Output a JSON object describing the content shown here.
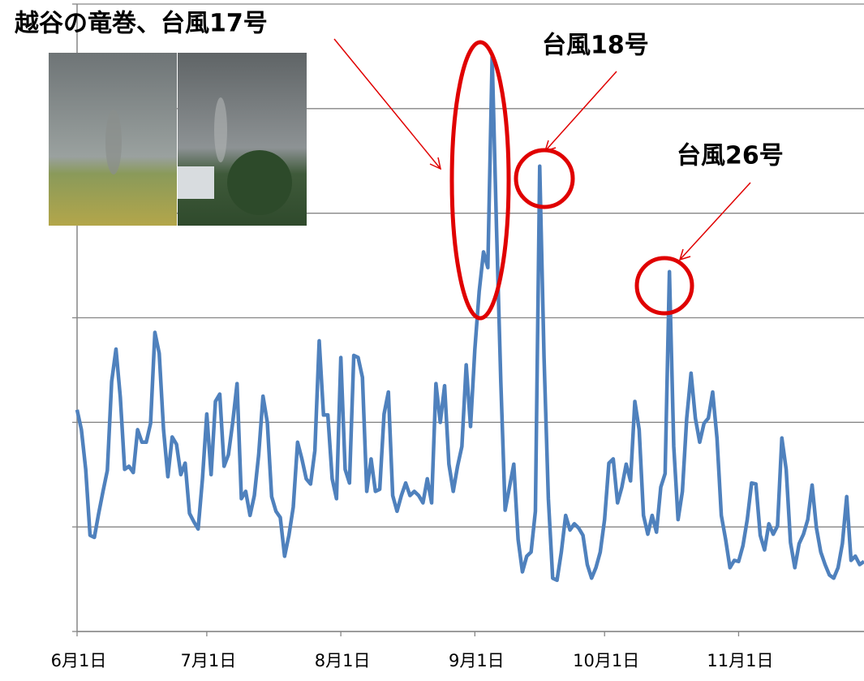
{
  "chart_data": {
    "type": "line",
    "annotations": [
      "越谷の竜巻、台風17号",
      "台風18号",
      "台風26号"
    ],
    "categories": [
      "6月1日",
      null,
      null,
      null,
      null,
      null,
      null,
      null,
      null,
      null,
      null,
      null,
      null,
      null,
      null,
      null,
      null,
      null,
      null,
      null,
      null,
      null,
      null,
      null,
      null,
      null,
      null,
      null,
      null,
      null,
      "7月1日",
      null,
      null,
      null,
      null,
      null,
      null,
      null,
      null,
      null,
      null,
      null,
      null,
      null,
      null,
      null,
      null,
      null,
      null,
      null,
      null,
      null,
      null,
      null,
      null,
      null,
      null,
      null,
      null,
      null,
      null,
      "8月1日",
      null,
      null,
      null,
      null,
      null,
      null,
      null,
      null,
      null,
      null,
      null,
      null,
      null,
      null,
      null,
      null,
      null,
      null,
      null,
      null,
      null,
      null,
      null,
      null,
      null,
      null,
      null,
      null,
      null,
      null,
      "9月1日",
      null,
      null,
      null,
      null,
      null,
      null,
      null,
      null,
      null,
      null,
      null,
      null,
      null,
      null,
      null,
      null,
      null,
      null,
      null,
      null,
      null,
      null,
      null,
      null,
      null,
      null,
      null,
      null,
      null,
      "10月1日",
      null,
      null,
      null,
      null,
      null,
      null,
      null,
      null,
      null,
      null,
      null,
      null,
      null,
      null,
      null,
      null,
      null,
      null,
      null,
      null,
      null,
      null,
      null,
      null,
      null,
      null,
      null,
      null,
      null,
      null,
      "11月1日",
      null,
      null,
      null,
      null,
      null,
      null,
      null,
      null,
      null,
      null,
      null,
      null,
      null,
      null,
      null,
      null,
      null,
      null,
      null,
      null,
      null,
      null,
      null,
      null,
      null,
      null,
      null,
      null,
      null
    ],
    "values": [
      2.12,
      1.93,
      1.55,
      0.92,
      0.9,
      1.13,
      1.34,
      1.54,
      2.39,
      2.7,
      2.24,
      1.55,
      1.58,
      1.52,
      1.93,
      1.81,
      1.81,
      1.99,
      2.86,
      2.66,
      1.93,
      1.48,
      1.86,
      1.79,
      1.5,
      1.61,
      1.13,
      1.05,
      0.98,
      1.46,
      2.08,
      1.5,
      2.2,
      2.27,
      1.58,
      1.69,
      2.0,
      2.37,
      1.27,
      1.34,
      1.11,
      1.3,
      1.69,
      2.25,
      2.0,
      1.29,
      1.15,
      1.09,
      0.72,
      0.92,
      1.19,
      1.81,
      1.65,
      1.46,
      1.41,
      1.73,
      2.78,
      2.07,
      2.07,
      1.46,
      1.27,
      2.62,
      1.55,
      1.42,
      2.64,
      2.62,
      2.43,
      1.34,
      1.65,
      1.34,
      1.36,
      2.08,
      2.29,
      1.3,
      1.15,
      1.3,
      1.42,
      1.3,
      1.34,
      1.3,
      1.23,
      1.46,
      1.23,
      2.37,
      2.0,
      2.35,
      1.6,
      1.34,
      1.58,
      1.77,
      2.55,
      1.96,
      2.7,
      3.25,
      3.63,
      3.48,
      5.5,
      3.87,
      2.39,
      1.16,
      1.38,
      1.6,
      0.88,
      0.57,
      0.72,
      0.76,
      1.15,
      4.45,
      2.62,
      1.27,
      0.51,
      0.49,
      0.76,
      1.11,
      0.97,
      1.03,
      0.99,
      0.92,
      0.64,
      0.51,
      0.61,
      0.76,
      1.07,
      1.61,
      1.65,
      1.23,
      1.38,
      1.6,
      1.44,
      2.2,
      1.93,
      1.11,
      0.93,
      1.11,
      0.95,
      1.38,
      1.51,
      3.44,
      1.77,
      1.07,
      1.34,
      2.04,
      2.47,
      2.04,
      1.81,
      1.99,
      2.04,
      2.29,
      1.85,
      1.11,
      0.88,
      0.61,
      0.68,
      0.67,
      0.82,
      1.07,
      1.42,
      1.41,
      0.92,
      0.78,
      1.03,
      0.93,
      1.01,
      1.85,
      1.55,
      0.85,
      0.61,
      0.84,
      0.93,
      1.07,
      1.4,
      0.99,
      0.76,
      0.64,
      0.54,
      0.51,
      0.61,
      0.84,
      1.29,
      0.68,
      0.72,
      0.64,
      0.67
    ],
    "color": "#4f81bd",
    "ylim": [
      0,
      6
    ],
    "yticks": [
      0,
      1,
      2,
      3,
      4,
      5,
      6
    ],
    "grid": true
  }
}
